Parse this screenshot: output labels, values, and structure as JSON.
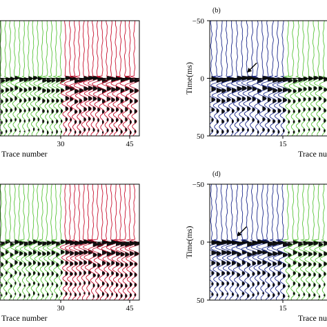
{
  "figure": {
    "panels": [
      {
        "id": "a",
        "label": "",
        "ylabel": "",
        "xlabel": "Trace number",
        "x_ticks": [
          {
            "value": 30,
            "label": "30"
          },
          {
            "value": 45,
            "label": "45"
          }
        ],
        "y_ticks": [],
        "trace_start": 14,
        "trace_end": 46,
        "time_range_ms": [
          -50,
          50
        ],
        "segments": [
          {
            "from": 14,
            "to": 30.5,
            "color": "#59c43a"
          },
          {
            "from": 30.5,
            "to": 46,
            "color": "#c8102e"
          }
        ],
        "first_break_ms": 0,
        "arrow": null
      },
      {
        "id": "b",
        "label": "(b)",
        "ylabel": "Time(ms)",
        "xlabel": "Trace numb",
        "x_ticks": [
          {
            "value": 15,
            "label": "15"
          }
        ],
        "y_ticks": [
          {
            "value": -50,
            "label": "−50"
          },
          {
            "value": 0,
            "label": "0"
          },
          {
            "value": 50,
            "label": "50"
          }
        ],
        "trace_start": 1,
        "trace_end": 23,
        "time_range_ms": [
          -50,
          50
        ],
        "segments": [
          {
            "from": 1,
            "to": 15.5,
            "color": "#1c2a8c"
          },
          {
            "from": 15.5,
            "to": 23,
            "color": "#59c43a"
          }
        ],
        "first_break_ms": 0,
        "arrow": {
          "trace": 8,
          "time_ms": -5
        }
      },
      {
        "id": "c",
        "label": "",
        "ylabel": "",
        "xlabel": "Trace number",
        "x_ticks": [
          {
            "value": 30,
            "label": "30"
          },
          {
            "value": 45,
            "label": "45"
          }
        ],
        "y_ticks": [],
        "trace_start": 14,
        "trace_end": 46,
        "time_range_ms": [
          -50,
          50
        ],
        "segments": [
          {
            "from": 14,
            "to": 30.5,
            "color": "#59c43a"
          },
          {
            "from": 30.5,
            "to": 46,
            "color": "#c8102e"
          }
        ],
        "first_break_ms": 0,
        "arrow": null
      },
      {
        "id": "d",
        "label": "(d)",
        "ylabel": "Time(ms)",
        "xlabel": "Trace numb",
        "x_ticks": [
          {
            "value": 15,
            "label": "15"
          }
        ],
        "y_ticks": [
          {
            "value": -50,
            "label": "−50"
          },
          {
            "value": 0,
            "label": "0"
          },
          {
            "value": 50,
            "label": "50"
          }
        ],
        "trace_start": 1,
        "trace_end": 23,
        "time_range_ms": [
          -50,
          50
        ],
        "segments": [
          {
            "from": 1,
            "to": 15.5,
            "color": "#1c2a8c"
          },
          {
            "from": 15.5,
            "to": 23,
            "color": "#59c43a"
          }
        ],
        "first_break_ms": 0,
        "arrow": {
          "trace": 6,
          "time_ms": -5
        }
      }
    ]
  },
  "chart_data": [
    {
      "type": "wiggle-trace seismogram",
      "panel": "a",
      "x_axis": "Trace number",
      "x_ticks": [
        30,
        45
      ],
      "time_range_ms": [
        -50,
        50
      ],
      "first_break_ms": 0,
      "trace_colors": [
        {
          "traces": "≤30",
          "color": "#59c43a"
        },
        {
          "traces": "31–45",
          "color": "#c8102e"
        }
      ]
    },
    {
      "type": "wiggle-trace seismogram",
      "panel": "b",
      "x_axis": "Trace number",
      "y_axis": "Time(ms)",
      "x_ticks": [
        15
      ],
      "y_ticks": [
        -50,
        0,
        50
      ],
      "time_range_ms": [
        -50,
        50
      ],
      "first_break_ms": 0,
      "trace_colors": [
        {
          "traces": "≤15",
          "color": "#1c2a8c"
        },
        {
          "traces": ">15",
          "color": "#59c43a"
        }
      ]
    },
    {
      "type": "wiggle-trace seismogram",
      "panel": "c",
      "x_axis": "Trace number",
      "x_ticks": [
        30,
        45
      ],
      "time_range_ms": [
        -50,
        50
      ],
      "first_break_ms": 0,
      "trace_colors": [
        {
          "traces": "≤30",
          "color": "#59c43a"
        },
        {
          "traces": "31–45",
          "color": "#c8102e"
        }
      ]
    },
    {
      "type": "wiggle-trace seismogram",
      "panel": "d",
      "x_axis": "Trace number",
      "y_axis": "Time(ms)",
      "x_ticks": [
        15
      ],
      "y_ticks": [
        -50,
        0,
        50
      ],
      "time_range_ms": [
        -50,
        50
      ],
      "first_break_ms": 0,
      "trace_colors": [
        {
          "traces": "≤15",
          "color": "#1c2a8c"
        },
        {
          "traces": ">15",
          "color": "#59c43a"
        }
      ]
    }
  ]
}
